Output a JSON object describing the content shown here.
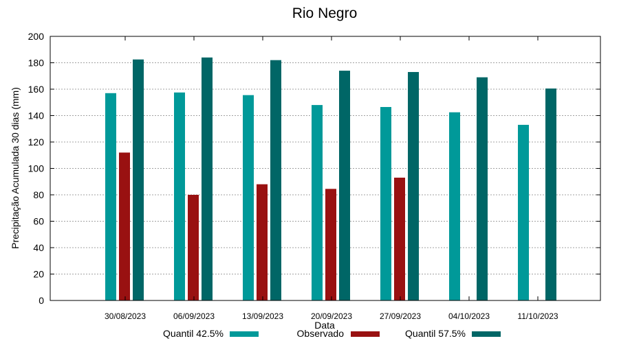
{
  "chart_data": {
    "type": "bar",
    "title": "Rio Negro",
    "xlabel": "Data",
    "ylabel": "Precipitação Acumulada 30 dias (mm)",
    "ylim": [
      0,
      200
    ],
    "yticks": [
      0,
      20,
      40,
      60,
      80,
      100,
      120,
      140,
      160,
      180,
      200
    ],
    "grid": true,
    "legend_position": "bottom",
    "categories": [
      "30/08/2023",
      "06/09/2023",
      "13/09/2023",
      "20/09/2023",
      "27/09/2023",
      "04/10/2023",
      "11/10/2023"
    ],
    "series": [
      {
        "name": "Quantil 42.5%",
        "color": "#009999",
        "values": [
          157,
          157.5,
          155.5,
          148,
          146.5,
          142.5,
          133
        ]
      },
      {
        "name": "Observado",
        "color": "#991111",
        "values": [
          112,
          80,
          88,
          84.5,
          93,
          null,
          null
        ]
      },
      {
        "name": "Quantil 57.5%",
        "color": "#006666",
        "values": [
          182.5,
          184,
          182,
          174,
          173,
          169,
          160.5
        ]
      }
    ]
  }
}
